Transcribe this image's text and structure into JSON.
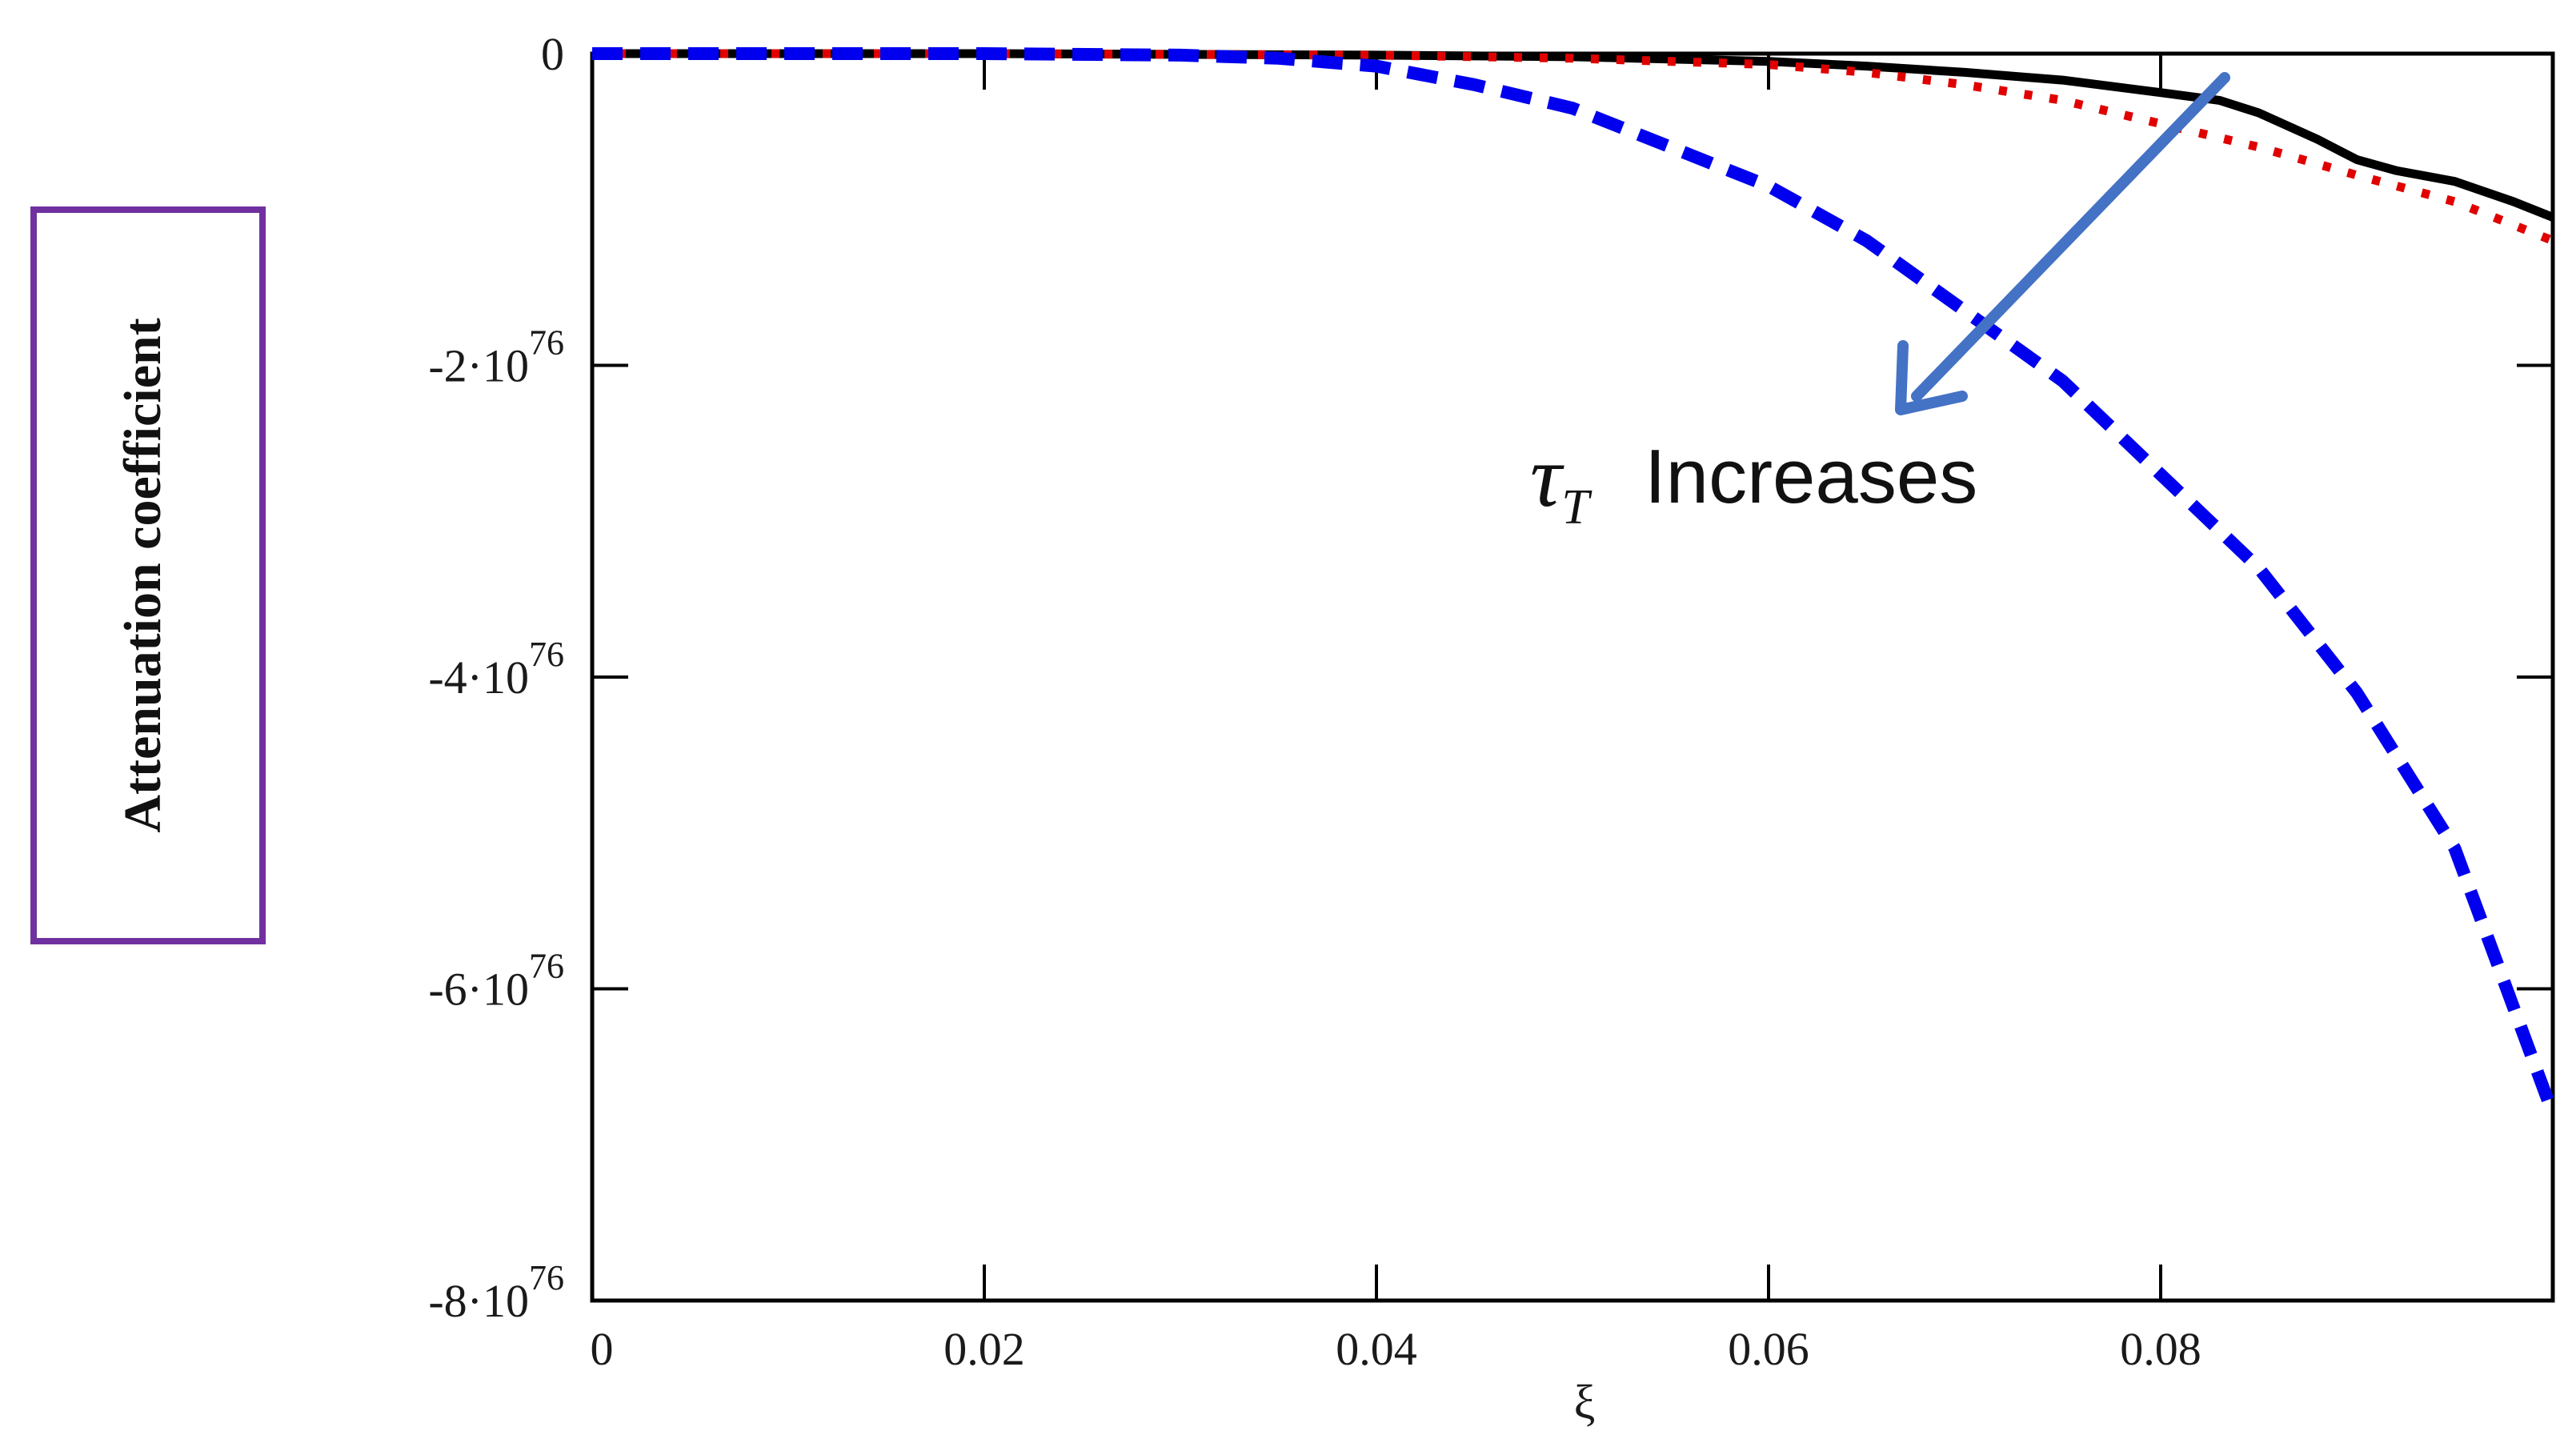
{
  "chart_data": {
    "type": "line",
    "title": "",
    "xlabel": "ξ",
    "ylabel": "Attenuation coefficient",
    "xlim": [
      0,
      0.1
    ],
    "ylim": [
      -8e+76,
      0
    ],
    "x_ticks": [
      0,
      0.02,
      0.04,
      0.06,
      0.08
    ],
    "x_tick_labels": [
      "0",
      "0.02",
      "0.04",
      "0.06",
      "0.08"
    ],
    "y_ticks": [
      0,
      -2e+76,
      -4e+76,
      -6e+76,
      -8e+76
    ],
    "y_tick_labels": [
      {
        "mantissa": "0",
        "exponent": ""
      },
      {
        "mantissa": "-2·10",
        "exponent": "76"
      },
      {
        "mantissa": "-4·10",
        "exponent": "76"
      },
      {
        "mantissa": "-6·10",
        "exponent": "76"
      },
      {
        "mantissa": "-8·10",
        "exponent": "76"
      }
    ],
    "grid": false,
    "series": [
      {
        "style": "solid",
        "color": "#000000",
        "x": [
          0,
          0.02,
          0.04,
          0.05,
          0.06,
          0.065,
          0.07,
          0.075,
          0.08,
          0.083,
          0.085,
          0.088,
          0.09,
          0.092,
          0.095,
          0.098,
          0.1
        ],
        "y": [
          0,
          0,
          -1e+74,
          -2e+74,
          -5e+74,
          -8e+74,
          -1.2e+75,
          -1.7e+75,
          -2.5e+75,
          -3e+75,
          -3.8e+75,
          -5.5e+75,
          -6.8e+75,
          -7.5e+75,
          -8.2e+75,
          -9.5e+75,
          -1.05e+76
        ]
      },
      {
        "style": "dotted",
        "color": "#e00000",
        "x": [
          0,
          0.02,
          0.04,
          0.05,
          0.06,
          0.065,
          0.07,
          0.075,
          0.08,
          0.085,
          0.09,
          0.095,
          0.1
        ],
        "y": [
          0,
          0,
          -1e+74,
          -3e+74,
          -7e+74,
          -1.2e+75,
          -2e+75,
          -3e+75,
          -4.5e+75,
          -6e+75,
          -7.8e+75,
          -9.5e+75,
          -1.2e+76
        ]
      },
      {
        "style": "dashed",
        "color": "#0000ee",
        "x": [
          0,
          0.02,
          0.03,
          0.035,
          0.04,
          0.045,
          0.05,
          0.055,
          0.06,
          0.065,
          0.07,
          0.075,
          0.08,
          0.085,
          0.09,
          0.095,
          0.1
        ],
        "y": [
          0,
          0,
          -1e+74,
          -3e+74,
          -8e+74,
          -2e+75,
          -3.5e+75,
          -6e+75,
          -8.5e+75,
          -1.2e+76,
          -1.65e+76,
          -2.1e+76,
          -2.7e+76,
          -3.3e+76,
          -4.1e+76,
          -5.1e+76,
          -6.8e+76
        ]
      }
    ],
    "annotation": {
      "symbol": "τ",
      "subscript": "T",
      "text": "Increases",
      "arrow_color": "#4472c4"
    },
    "ylabel_box_color": "#7030a0"
  }
}
